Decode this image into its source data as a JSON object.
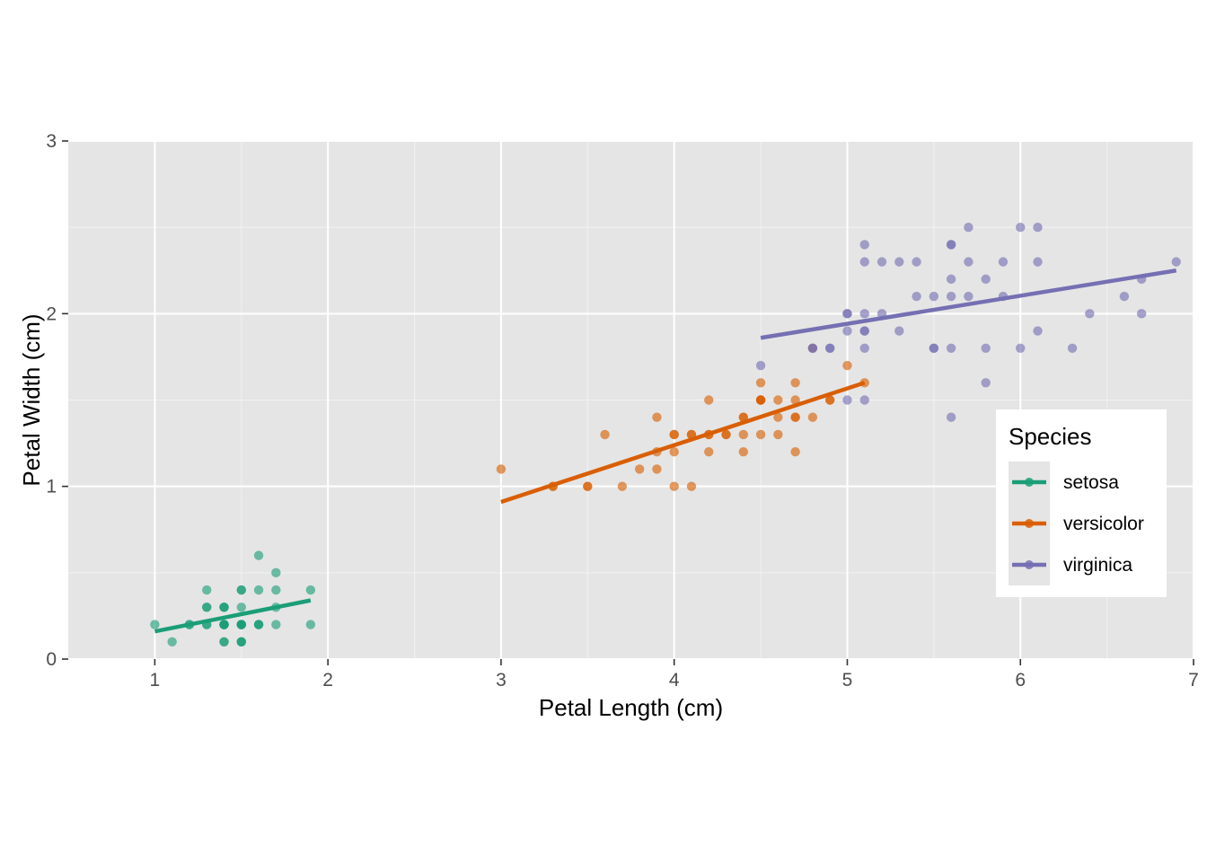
{
  "chart_data": {
    "type": "scatter",
    "xlabel": "Petal Length (cm)",
    "ylabel": "Petal Width (cm)",
    "xlim": [
      0.5,
      7.0
    ],
    "ylim": [
      0,
      3
    ],
    "xticks": [
      1,
      2,
      3,
      4,
      5,
      6,
      7
    ],
    "yticks": [
      0,
      1,
      2,
      3
    ],
    "grid": true,
    "legend": {
      "title": "Species",
      "position": "right"
    },
    "series": [
      {
        "name": "setosa",
        "color": "#1b9e77",
        "fit": {
          "x1": 1.0,
          "y1": 0.16,
          "x2": 1.9,
          "y2": 0.34
        },
        "points": [
          [
            1.0,
            0.2
          ],
          [
            1.1,
            0.1
          ],
          [
            1.2,
            0.2
          ],
          [
            1.2,
            0.2
          ],
          [
            1.3,
            0.2
          ],
          [
            1.3,
            0.3
          ],
          [
            1.3,
            0.2
          ],
          [
            1.3,
            0.4
          ],
          [
            1.3,
            0.3
          ],
          [
            1.4,
            0.2
          ],
          [
            1.4,
            0.2
          ],
          [
            1.4,
            0.3
          ],
          [
            1.4,
            0.1
          ],
          [
            1.4,
            0.2
          ],
          [
            1.4,
            0.3
          ],
          [
            1.4,
            0.2
          ],
          [
            1.4,
            0.2
          ],
          [
            1.4,
            0.1
          ],
          [
            1.4,
            0.2
          ],
          [
            1.4,
            0.3
          ],
          [
            1.5,
            0.2
          ],
          [
            1.5,
            0.1
          ],
          [
            1.5,
            0.2
          ],
          [
            1.5,
            0.4
          ],
          [
            1.5,
            0.4
          ],
          [
            1.5,
            0.3
          ],
          [
            1.5,
            0.2
          ],
          [
            1.5,
            0.1
          ],
          [
            1.5,
            0.2
          ],
          [
            1.5,
            0.2
          ],
          [
            1.5,
            0.1
          ],
          [
            1.6,
            0.2
          ],
          [
            1.6,
            0.2
          ],
          [
            1.6,
            0.4
          ],
          [
            1.6,
            0.6
          ],
          [
            1.6,
            0.2
          ],
          [
            1.7,
            0.4
          ],
          [
            1.7,
            0.3
          ],
          [
            1.7,
            0.2
          ],
          [
            1.7,
            0.5
          ],
          [
            1.9,
            0.2
          ],
          [
            1.9,
            0.4
          ]
        ]
      },
      {
        "name": "versicolor",
        "color": "#d95f02",
        "fit": {
          "x1": 3.0,
          "y1": 0.91,
          "x2": 5.1,
          "y2": 1.6
        },
        "points": [
          [
            3.0,
            1.1
          ],
          [
            3.3,
            1.0
          ],
          [
            3.3,
            1.0
          ],
          [
            3.5,
            1.0
          ],
          [
            3.5,
            1.0
          ],
          [
            3.6,
            1.3
          ],
          [
            3.7,
            1.0
          ],
          [
            3.8,
            1.1
          ],
          [
            3.9,
            1.4
          ],
          [
            3.9,
            1.1
          ],
          [
            3.9,
            1.2
          ],
          [
            4.0,
            1.3
          ],
          [
            4.0,
            1.0
          ],
          [
            4.0,
            1.3
          ],
          [
            4.0,
            1.2
          ],
          [
            4.1,
            1.0
          ],
          [
            4.1,
            1.3
          ],
          [
            4.1,
            1.3
          ],
          [
            4.2,
            1.3
          ],
          [
            4.2,
            1.5
          ],
          [
            4.2,
            1.2
          ],
          [
            4.2,
            1.3
          ],
          [
            4.3,
            1.3
          ],
          [
            4.3,
            1.3
          ],
          [
            4.4,
            1.4
          ],
          [
            4.4,
            1.3
          ],
          [
            4.4,
            1.2
          ],
          [
            4.4,
            1.4
          ],
          [
            4.5,
            1.5
          ],
          [
            4.5,
            1.5
          ],
          [
            4.5,
            1.6
          ],
          [
            4.5,
            1.5
          ],
          [
            4.5,
            1.3
          ],
          [
            4.5,
            1.5
          ],
          [
            4.6,
            1.4
          ],
          [
            4.6,
            1.5
          ],
          [
            4.6,
            1.3
          ],
          [
            4.7,
            1.4
          ],
          [
            4.7,
            1.4
          ],
          [
            4.7,
            1.2
          ],
          [
            4.7,
            1.5
          ],
          [
            4.7,
            1.6
          ],
          [
            4.8,
            1.8
          ],
          [
            4.8,
            1.4
          ],
          [
            4.9,
            1.5
          ],
          [
            4.9,
            1.5
          ],
          [
            5.0,
            1.7
          ],
          [
            5.1,
            1.6
          ]
        ]
      },
      {
        "name": "virginica",
        "color": "#7570b3",
        "fit": {
          "x1": 4.5,
          "y1": 1.86,
          "x2": 6.9,
          "y2": 2.25
        },
        "points": [
          [
            4.5,
            1.7
          ],
          [
            4.8,
            1.8
          ],
          [
            4.8,
            1.8
          ],
          [
            4.9,
            1.8
          ],
          [
            4.9,
            1.8
          ],
          [
            5.0,
            2.0
          ],
          [
            5.0,
            1.5
          ],
          [
            5.0,
            1.9
          ],
          [
            5.0,
            2.0
          ],
          [
            5.1,
            2.4
          ],
          [
            5.1,
            2.3
          ],
          [
            5.1,
            1.9
          ],
          [
            5.1,
            2.0
          ],
          [
            5.1,
            1.8
          ],
          [
            5.1,
            1.5
          ],
          [
            5.1,
            1.9
          ],
          [
            5.2,
            2.3
          ],
          [
            5.2,
            2.0
          ],
          [
            5.3,
            2.3
          ],
          [
            5.3,
            1.9
          ],
          [
            5.4,
            2.1
          ],
          [
            5.4,
            2.3
          ],
          [
            5.5,
            2.1
          ],
          [
            5.5,
            1.8
          ],
          [
            5.5,
            1.8
          ],
          [
            5.6,
            2.4
          ],
          [
            5.6,
            2.1
          ],
          [
            5.6,
            1.8
          ],
          [
            5.6,
            2.4
          ],
          [
            5.6,
            2.2
          ],
          [
            5.6,
            1.4
          ],
          [
            5.7,
            2.5
          ],
          [
            5.7,
            2.3
          ],
          [
            5.7,
            2.1
          ],
          [
            5.8,
            2.2
          ],
          [
            5.8,
            1.8
          ],
          [
            5.8,
            1.6
          ],
          [
            5.9,
            2.3
          ],
          [
            5.9,
            2.1
          ],
          [
            6.0,
            2.5
          ],
          [
            6.0,
            1.8
          ],
          [
            6.1,
            2.5
          ],
          [
            6.1,
            2.3
          ],
          [
            6.1,
            1.9
          ],
          [
            6.3,
            1.8
          ],
          [
            6.4,
            2.0
          ],
          [
            6.6,
            2.1
          ],
          [
            6.7,
            2.2
          ],
          [
            6.7,
            2.0
          ],
          [
            6.9,
            2.3
          ]
        ]
      }
    ]
  }
}
